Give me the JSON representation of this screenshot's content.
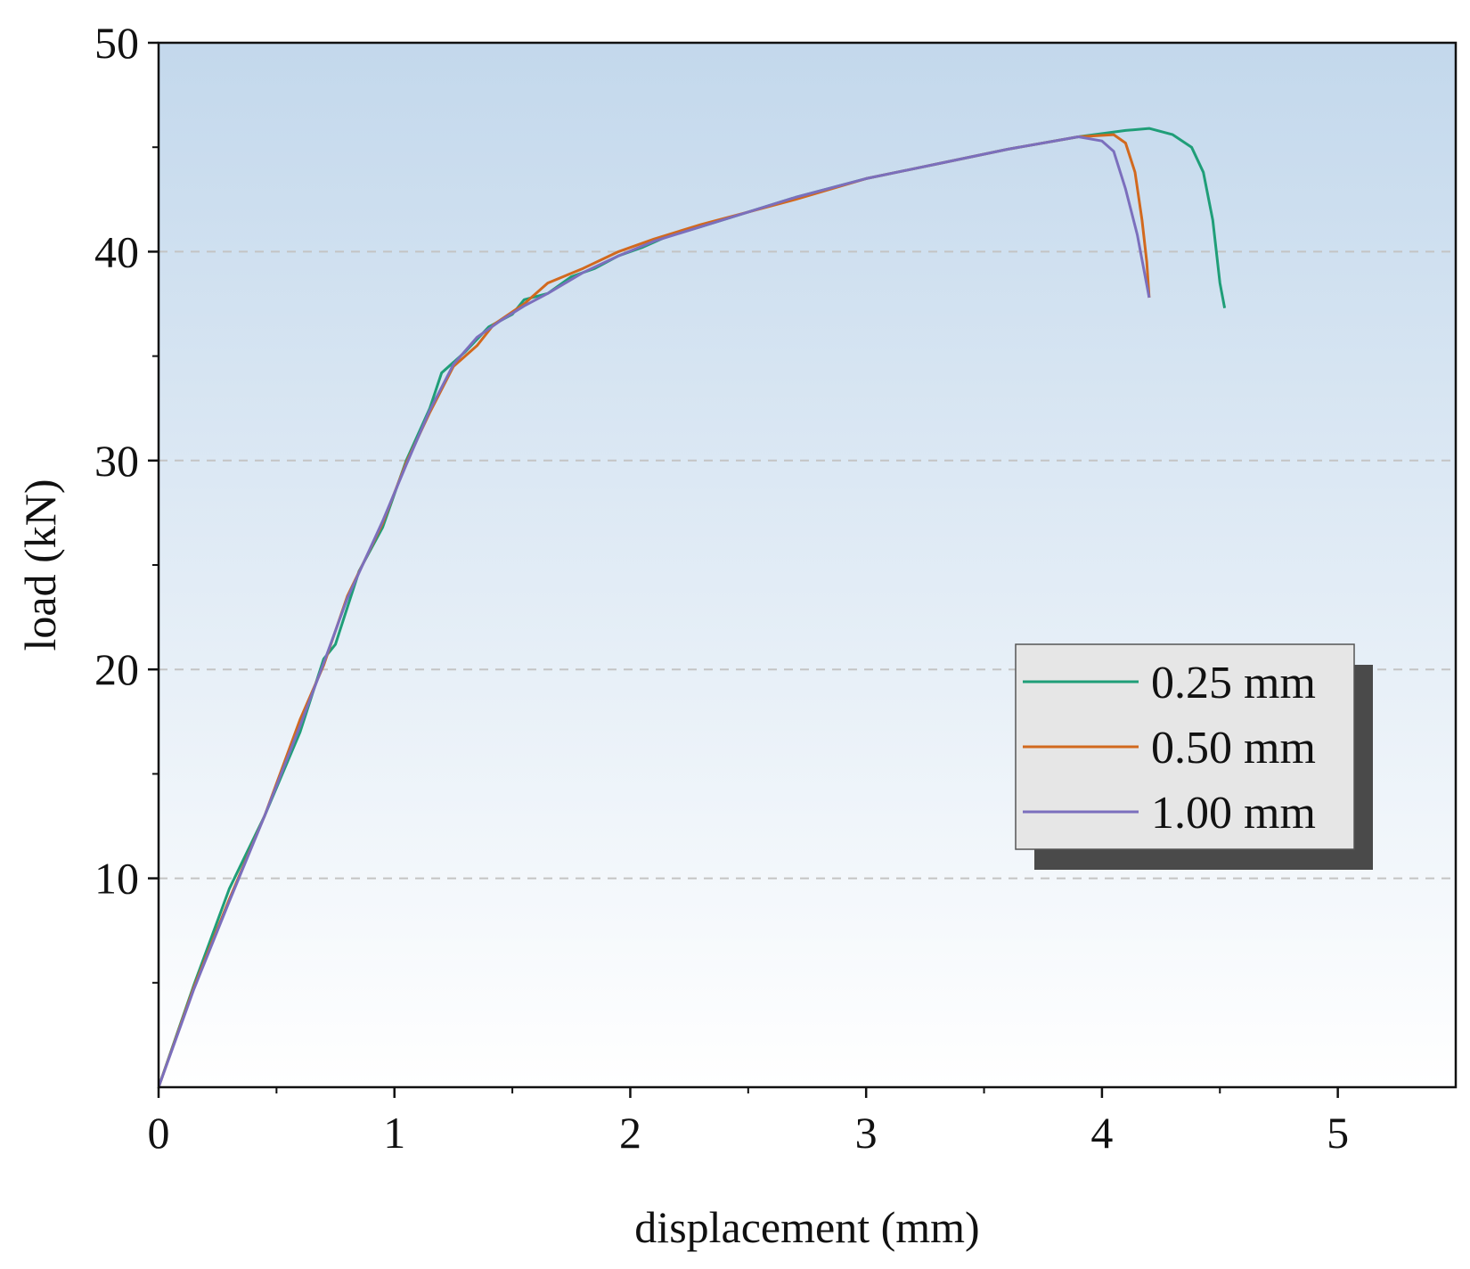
{
  "chart_data": {
    "type": "line",
    "title": "",
    "xlabel": "displacement (mm)",
    "ylabel": "load (kN)",
    "xlim": [
      0,
      5.5
    ],
    "ylim": [
      0,
      50
    ],
    "x_ticks": [
      0,
      1,
      2,
      3,
      4,
      5
    ],
    "x_tick_labels": [
      "0",
      "1",
      "2",
      "3",
      "4",
      "5"
    ],
    "y_ticks": [
      10,
      20,
      30,
      40,
      50
    ],
    "y_tick_labels": [
      "10",
      "20",
      "30",
      "40",
      "50"
    ],
    "x_minor_ticks": [
      0.5,
      1.5,
      2.5,
      3.5,
      4.5
    ],
    "y_minor_ticks": [
      5,
      15,
      25,
      35,
      45
    ],
    "grid": {
      "horizontal": true,
      "style": "dashed",
      "color": "#c4c4c4"
    },
    "background_gradient": {
      "top": "#c3d8ec",
      "bottom": "#ffffff"
    },
    "legend": {
      "position": "middle-right",
      "background": "#e6e6e6",
      "shadow": "#4a4a4a"
    },
    "series": [
      {
        "name": "0.25 mm",
        "color": "#1f9e78",
        "points": [
          [
            0,
            0
          ],
          [
            0.15,
            4.9
          ],
          [
            0.3,
            9.5
          ],
          [
            0.45,
            13.0
          ],
          [
            0.6,
            17.0
          ],
          [
            0.7,
            20.5
          ],
          [
            0.75,
            21.2
          ],
          [
            0.85,
            24.7
          ],
          [
            0.95,
            26.8
          ],
          [
            1.05,
            30.0
          ],
          [
            1.15,
            32.5
          ],
          [
            1.2,
            34.2
          ],
          [
            1.3,
            35.2
          ],
          [
            1.4,
            36.4
          ],
          [
            1.5,
            37.0
          ],
          [
            1.55,
            37.7
          ],
          [
            1.65,
            38.0
          ],
          [
            1.75,
            38.8
          ],
          [
            1.85,
            39.2
          ],
          [
            1.95,
            39.8
          ],
          [
            2.05,
            40.2
          ],
          [
            2.15,
            40.7
          ],
          [
            2.3,
            41.2
          ],
          [
            2.5,
            41.9
          ],
          [
            2.7,
            42.6
          ],
          [
            3.0,
            43.5
          ],
          [
            3.3,
            44.2
          ],
          [
            3.6,
            44.9
          ],
          [
            3.9,
            45.5
          ],
          [
            4.1,
            45.8
          ],
          [
            4.2,
            45.9
          ],
          [
            4.3,
            45.6
          ],
          [
            4.38,
            45.0
          ],
          [
            4.43,
            43.8
          ],
          [
            4.47,
            41.5
          ],
          [
            4.5,
            38.5
          ],
          [
            4.52,
            37.3
          ]
        ]
      },
      {
        "name": "0.50 mm",
        "color": "#d2691e",
        "points": [
          [
            0,
            0
          ],
          [
            0.15,
            4.8
          ],
          [
            0.3,
            9.0
          ],
          [
            0.45,
            13.0
          ],
          [
            0.6,
            17.6
          ],
          [
            0.7,
            20.2
          ],
          [
            0.8,
            23.5
          ],
          [
            0.95,
            27.0
          ],
          [
            1.05,
            29.9
          ],
          [
            1.15,
            32.3
          ],
          [
            1.25,
            34.5
          ],
          [
            1.35,
            35.5
          ],
          [
            1.42,
            36.5
          ],
          [
            1.55,
            37.5
          ],
          [
            1.65,
            38.5
          ],
          [
            1.8,
            39.2
          ],
          [
            1.95,
            40.0
          ],
          [
            2.1,
            40.6
          ],
          [
            2.3,
            41.3
          ],
          [
            2.5,
            41.9
          ],
          [
            2.7,
            42.5
          ],
          [
            3.0,
            43.5
          ],
          [
            3.3,
            44.2
          ],
          [
            3.6,
            44.9
          ],
          [
            3.9,
            45.5
          ],
          [
            4.05,
            45.6
          ],
          [
            4.1,
            45.2
          ],
          [
            4.14,
            43.8
          ],
          [
            4.17,
            41.5
          ],
          [
            4.19,
            39.5
          ],
          [
            4.2,
            37.8
          ]
        ]
      },
      {
        "name": "1.00 mm",
        "color": "#7b6fbd",
        "points": [
          [
            0,
            0
          ],
          [
            0.15,
            4.7
          ],
          [
            0.3,
            8.9
          ],
          [
            0.45,
            13.0
          ],
          [
            0.6,
            17.3
          ],
          [
            0.7,
            20.3
          ],
          [
            0.8,
            23.4
          ],
          [
            0.95,
            27.1
          ],
          [
            1.05,
            29.8
          ],
          [
            1.15,
            32.4
          ],
          [
            1.25,
            34.6
          ],
          [
            1.35,
            35.9
          ],
          [
            1.45,
            36.7
          ],
          [
            1.55,
            37.4
          ],
          [
            1.65,
            38.0
          ],
          [
            1.8,
            39.0
          ],
          [
            1.95,
            39.8
          ],
          [
            2.1,
            40.5
          ],
          [
            2.3,
            41.2
          ],
          [
            2.5,
            41.9
          ],
          [
            2.7,
            42.6
          ],
          [
            3.0,
            43.5
          ],
          [
            3.3,
            44.2
          ],
          [
            3.6,
            44.9
          ],
          [
            3.9,
            45.5
          ],
          [
            4.0,
            45.3
          ],
          [
            4.05,
            44.8
          ],
          [
            4.1,
            43.0
          ],
          [
            4.15,
            40.8
          ],
          [
            4.2,
            37.8
          ]
        ]
      }
    ]
  }
}
